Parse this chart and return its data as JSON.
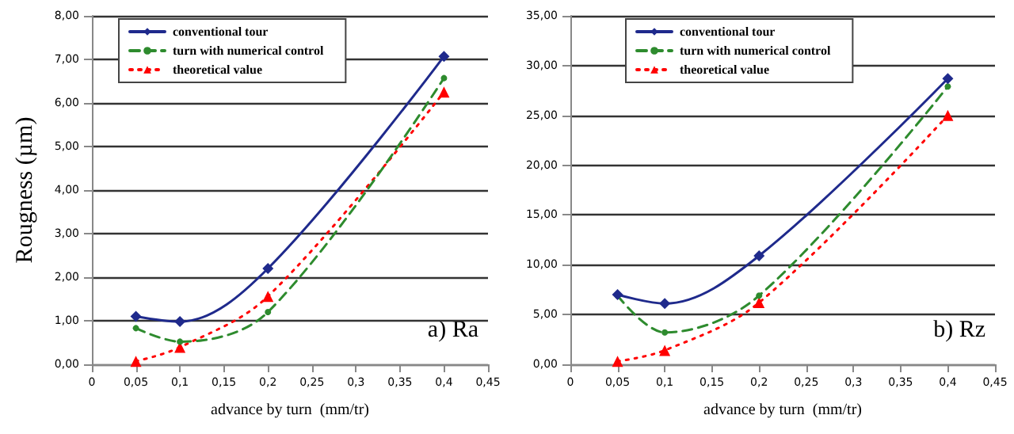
{
  "chart_data": [
    {
      "type": "line",
      "xlabel": "advance by turn  (mm/tr)",
      "ylabel": "Rougness (µm)",
      "annotations": [
        "a) Ra"
      ],
      "x": [
        0.05,
        0.1,
        0.2,
        0.4
      ],
      "series": [
        {
          "name": "conventional tour",
          "color": "#1f2a8c",
          "values": [
            1.1,
            0.98,
            2.2,
            7.07
          ],
          "marker": "diamond",
          "line_style": "solid"
        },
        {
          "name": "turn with numerical control",
          "color": "#2e8b2e",
          "values": [
            0.83,
            0.52,
            1.2,
            6.57
          ],
          "marker": "circle",
          "line_style": "dashed"
        },
        {
          "name": "theoretical value",
          "color": "#ff0000",
          "values": [
            0.07,
            0.39,
            1.56,
            6.25
          ],
          "marker": "triangle",
          "line_style": "dotted"
        }
      ],
      "xlim": [
        0,
        0.45
      ],
      "xticks": [
        0,
        {
          "value": 0.05,
          "label": "0,05"
        },
        {
          "value": 0.1,
          "label": "0,1"
        },
        {
          "value": 0.15,
          "label": "0,15"
        },
        {
          "value": 0.2,
          "label": "0,2"
        },
        {
          "value": 0.25,
          "label": "0,25"
        },
        {
          "value": 0.3,
          "label": "0,3"
        },
        {
          "value": 0.35,
          "label": "0,35"
        },
        {
          "value": 0.4,
          "label": "0,4"
        },
        {
          "value": 0.45,
          "label": "0,45"
        }
      ],
      "ylim": [
        0,
        8
      ],
      "yticks": [
        {
          "value": 0,
          "label": "0,00"
        },
        {
          "value": 1,
          "label": "1,00"
        },
        {
          "value": 2,
          "label": "2,00"
        },
        {
          "value": 3,
          "label": "3,00"
        },
        {
          "value": 4,
          "label": "4,00"
        },
        {
          "value": 5,
          "label": "5,00"
        },
        {
          "value": 6,
          "label": "6,00"
        },
        {
          "value": 7,
          "label": "7,00"
        },
        {
          "value": 8,
          "label": "8,00"
        }
      ],
      "grid": "y",
      "legend": "top left"
    },
    {
      "type": "line",
      "xlabel": "advance by turn  (mm/tr)",
      "annotations": [
        "b) Rz"
      ],
      "x": [
        0.05,
        0.1,
        0.2,
        0.4
      ],
      "series": [
        {
          "name": "conventional tour",
          "color": "#1f2a8c",
          "values": [
            7.0,
            6.1,
            10.9,
            28.7
          ],
          "marker": "diamond",
          "line_style": "solid"
        },
        {
          "name": "turn with numerical control",
          "color": "#2e8b2e",
          "values": [
            6.9,
            3.2,
            6.9,
            27.9
          ],
          "marker": "circle",
          "line_style": "dashed"
        },
        {
          "name": "theoretical value",
          "color": "#ff0000",
          "values": [
            0.3,
            1.4,
            6.2,
            25.0
          ],
          "marker": "triangle",
          "line_style": "dotted"
        }
      ],
      "xlim": [
        0,
        0.45
      ],
      "xticks": [
        0,
        {
          "value": 0.05,
          "label": "0,05"
        },
        {
          "value": 0.1,
          "label": "0,1"
        },
        {
          "value": 0.15,
          "label": "0,15"
        },
        {
          "value": 0.2,
          "label": "0,2"
        },
        {
          "value": 0.25,
          "label": "0,25"
        },
        {
          "value": 0.3,
          "label": "0,3"
        },
        {
          "value": 0.35,
          "label": "0,35"
        },
        {
          "value": 0.4,
          "label": "0,4"
        },
        {
          "value": 0.45,
          "label": "0,45"
        }
      ],
      "ylim": [
        0,
        35
      ],
      "yticks": [
        {
          "value": 0,
          "label": "0,00"
        },
        {
          "value": 5,
          "label": "5,00"
        },
        {
          "value": 10,
          "label": "10,00"
        },
        {
          "value": 15,
          "label": "15,00"
        },
        {
          "value": 20,
          "label": "20,00"
        },
        {
          "value": 25,
          "label": "25,00"
        },
        {
          "value": 30,
          "label": "30,00"
        },
        {
          "value": 35,
          "label": "35,00"
        }
      ],
      "grid": "y",
      "legend": "top left"
    }
  ]
}
